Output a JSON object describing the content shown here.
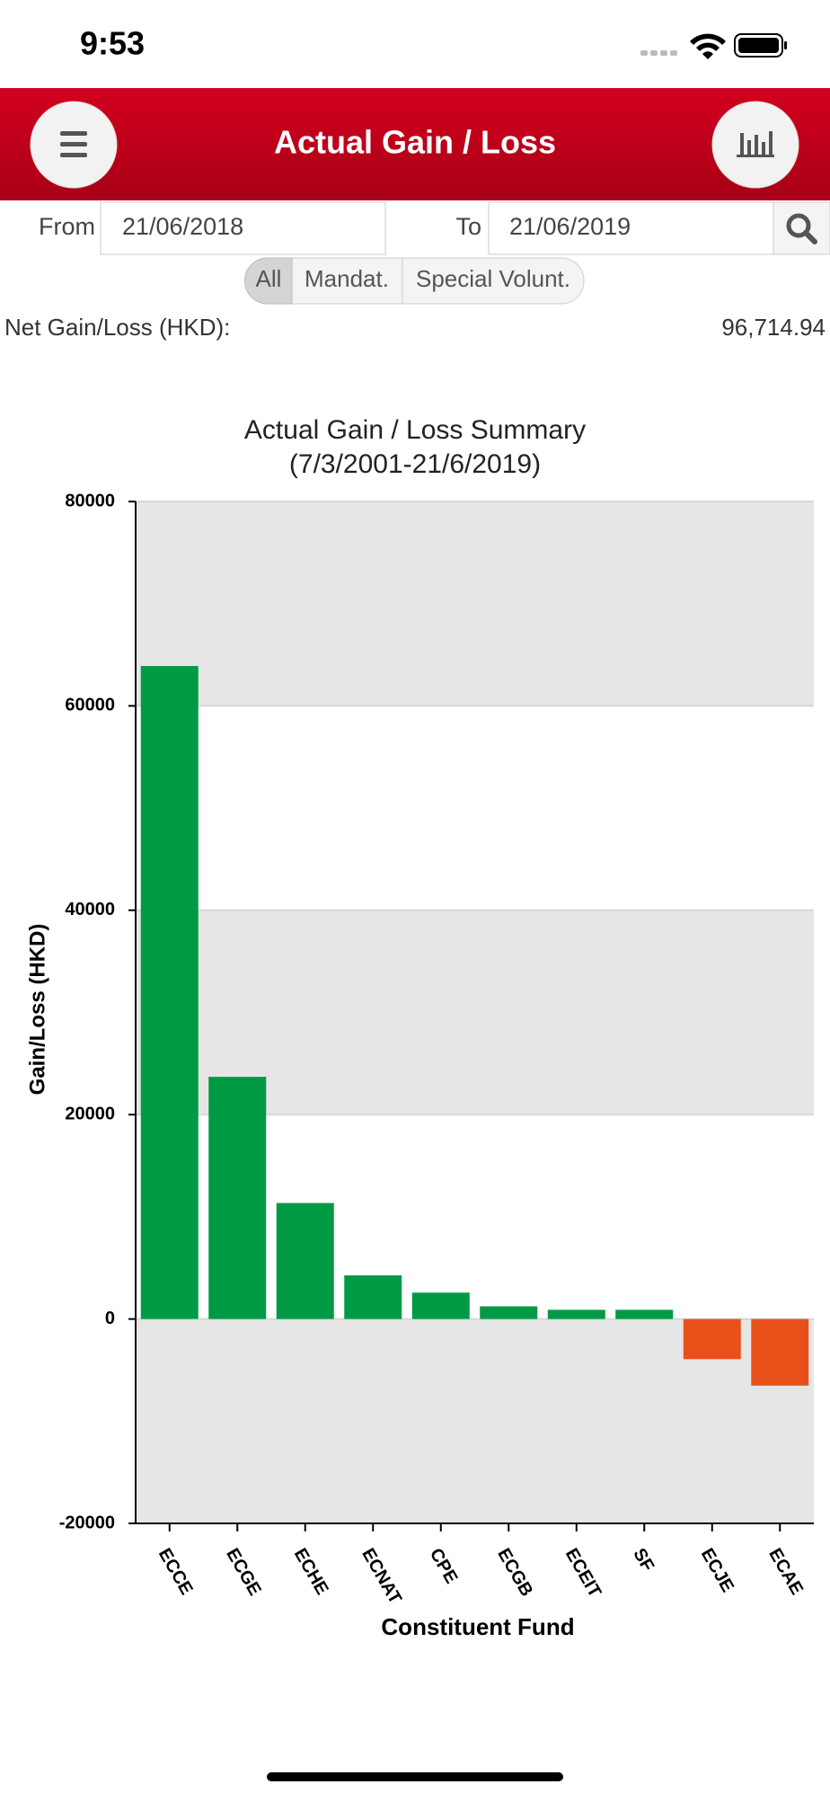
{
  "status_bar": {
    "time": "9:53"
  },
  "header": {
    "title": "Actual Gain / Loss"
  },
  "filter": {
    "from_label": "From",
    "from_date": "21/06/2018",
    "to_label": "To",
    "to_date": "21/06/2019"
  },
  "segments": [
    "All",
    "Mandat.",
    "Special Volunt."
  ],
  "net": {
    "label": "Net Gain/Loss (HKD):",
    "value": "96,714.94"
  },
  "chart_data": {
    "type": "bar",
    "title": "Actual Gain / Loss Summary",
    "subtitle": "(7/3/2001-21/6/2019)",
    "x_label": "Constituent Fund",
    "y_label": "Gain/Loss (HKD)",
    "categories": [
      "ECCE",
      "ECGE",
      "ECHE",
      "ECNAT",
      "CPE",
      "ECGB",
      "ECEIT",
      "SF",
      "ECJE",
      "ECAE"
    ],
    "values": [
      63900,
      23700,
      11350,
      4270,
      2580,
      1240,
      900,
      900,
      -3930,
      -6520
    ],
    "color": "#009a44",
    "negative_color": "#e8501a",
    "ylim": [
      -20000,
      80000
    ],
    "yticks": [
      -20000,
      0,
      20000,
      40000,
      60000,
      80000
    ],
    "grid": true
  }
}
